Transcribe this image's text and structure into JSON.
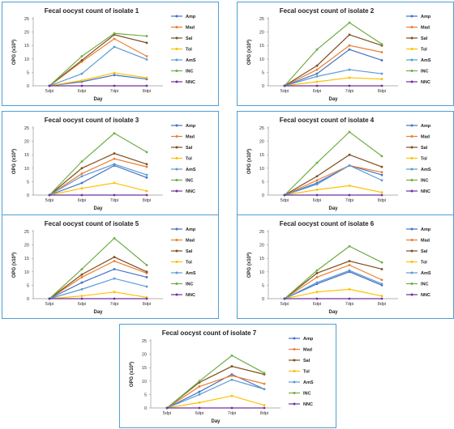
{
  "chart_data": [
    {
      "type": "line",
      "title": "Fecal oocyst count of isolate 1",
      "xlabel": "Day",
      "ylabel_main": "OPG (x10",
      "ylabel_exp": "5",
      "ylabel_end": ")",
      "categories": [
        "5dpi",
        "6dpi",
        "7dpi",
        "8dpi"
      ],
      "ylim": [
        0,
        25
      ],
      "yticks": [
        "0",
        "5",
        "10",
        "15",
        "20",
        "25"
      ],
      "legend_position": "right",
      "series": [
        {
          "name": "Amp",
          "color": "#4472c4",
          "values": [
            0,
            1.5,
            4,
            2.5
          ]
        },
        {
          "name": "Mad",
          "color": "#ed7d31",
          "values": [
            0,
            9,
            17.5,
            11
          ]
        },
        {
          "name": "Sal",
          "color": "#7f4f1f",
          "values": [
            0,
            9.5,
            19,
            16
          ]
        },
        {
          "name": "Tol",
          "color": "#ffc000",
          "values": [
            0,
            2,
            4.8,
            3
          ]
        },
        {
          "name": "AmS",
          "color": "#5b9bd5",
          "values": [
            0,
            4.5,
            14.5,
            9.8
          ]
        },
        {
          "name": "INC",
          "color": "#70ad47",
          "values": [
            0,
            11,
            19.5,
            18.5
          ]
        },
        {
          "name": "NNC",
          "color": "#7030a0",
          "values": [
            0,
            0,
            0,
            0
          ]
        }
      ]
    },
    {
      "type": "line",
      "title": "Fecal oocyst count of isolate 2",
      "xlabel": "Day",
      "ylabel_main": "OPG (x10",
      "ylabel_exp": "5",
      "ylabel_end": ")",
      "categories": [
        "5dpi",
        "6dpi",
        "7dpi",
        "8dpi"
      ],
      "ylim": [
        0,
        25
      ],
      "yticks": [
        "0",
        "5",
        "10",
        "15",
        "20",
        "25"
      ],
      "legend_position": "right",
      "series": [
        {
          "name": "Amp",
          "color": "#4472c4",
          "values": [
            0,
            4.5,
            13.5,
            9.5
          ]
        },
        {
          "name": "Mad",
          "color": "#ed7d31",
          "values": [
            0,
            6,
            15,
            12.5
          ]
        },
        {
          "name": "Sal",
          "color": "#7f4f1f",
          "values": [
            0,
            7.5,
            19,
            15
          ]
        },
        {
          "name": "Tol",
          "color": "#ffc000",
          "values": [
            0,
            1.5,
            3,
            2.5
          ]
        },
        {
          "name": "AmS",
          "color": "#5b9bd5",
          "values": [
            0,
            3.5,
            6,
            4.5
          ]
        },
        {
          "name": "INC",
          "color": "#70ad47",
          "values": [
            0,
            13.5,
            23.5,
            15.5
          ]
        },
        {
          "name": "NNC",
          "color": "#7030a0",
          "values": [
            0,
            0,
            0,
            0
          ]
        }
      ]
    },
    {
      "type": "line",
      "title": "Fecal oocyst count of isolate 3",
      "xlabel": "Day",
      "ylabel_main": "OPG (x10",
      "ylabel_exp": "5",
      "ylabel_end": ")",
      "categories": [
        "5dpi",
        "6dpi",
        "7dpi",
        "8dpi"
      ],
      "ylim": [
        0,
        25
      ],
      "yticks": [
        "0",
        "5",
        "10",
        "15",
        "20",
        "25"
      ],
      "legend_position": "right",
      "series": [
        {
          "name": "Amp",
          "color": "#4472c4",
          "values": [
            0,
            4.5,
            11,
            6.5
          ]
        },
        {
          "name": "Mad",
          "color": "#ed7d31",
          "values": [
            0,
            8,
            13.5,
            10.5
          ]
        },
        {
          "name": "Sal",
          "color": "#7f4f1f",
          "values": [
            0,
            10,
            15.5,
            11.5
          ]
        },
        {
          "name": "Tol",
          "color": "#ffc000",
          "values": [
            0,
            2.5,
            4.5,
            1.5
          ]
        },
        {
          "name": "AmS",
          "color": "#5b9bd5",
          "values": [
            0,
            7,
            11.5,
            7.5
          ]
        },
        {
          "name": "INC",
          "color": "#70ad47",
          "values": [
            0,
            12.5,
            23,
            16
          ]
        },
        {
          "name": "NNC",
          "color": "#7030a0",
          "values": [
            0,
            0,
            0,
            0
          ]
        }
      ]
    },
    {
      "type": "line",
      "title": "Fecal oocyst count of isolate 4",
      "xlabel": "Day",
      "ylabel_main": "OPG (x10",
      "ylabel_exp": "5",
      "ylabel_end": ")",
      "categories": [
        "5dpi",
        "6dpi",
        "7dpi",
        "8dpi"
      ],
      "ylim": [
        0,
        25
      ],
      "yticks": [
        "0",
        "5",
        "10",
        "15",
        "20",
        "25"
      ],
      "legend_position": "right",
      "series": [
        {
          "name": "Amp",
          "color": "#4472c4",
          "values": [
            0,
            4.5,
            11,
            7.5
          ]
        },
        {
          "name": "Mad",
          "color": "#ed7d31",
          "values": [
            0,
            5.5,
            11,
            8.5
          ]
        },
        {
          "name": "Sal",
          "color": "#7f4f1f",
          "values": [
            0,
            7,
            15,
            10.5
          ]
        },
        {
          "name": "Tol",
          "color": "#ffc000",
          "values": [
            0,
            2,
            3.5,
            1
          ]
        },
        {
          "name": "AmS",
          "color": "#5b9bd5",
          "values": [
            0,
            4,
            11,
            5.5
          ]
        },
        {
          "name": "INC",
          "color": "#70ad47",
          "values": [
            0,
            12,
            23.5,
            14.5
          ]
        },
        {
          "name": "NNC",
          "color": "#7030a0",
          "values": [
            0,
            0,
            0,
            0
          ]
        }
      ]
    },
    {
      "type": "line",
      "title": "Fecal oocyst count of isolate 5",
      "xlabel": "Day",
      "ylabel_main": "OPG (x10",
      "ylabel_exp": "5",
      "ylabel_end": ")",
      "categories": [
        "5dpi",
        "6dpi",
        "7dpi",
        "8dpi"
      ],
      "ylim": [
        0,
        25
      ],
      "yticks": [
        "0",
        "5",
        "10",
        "15",
        "20",
        "25"
      ],
      "legend_position": "right",
      "series": [
        {
          "name": "Amp",
          "color": "#4472c4",
          "values": [
            0,
            6,
            11,
            8
          ]
        },
        {
          "name": "Mad",
          "color": "#ed7d31",
          "values": [
            0,
            8,
            14,
            9.5
          ]
        },
        {
          "name": "Sal",
          "color": "#7f4f1f",
          "values": [
            0,
            9,
            15.5,
            10
          ]
        },
        {
          "name": "Tol",
          "color": "#ffc000",
          "values": [
            0,
            1,
            2.5,
            0.5
          ]
        },
        {
          "name": "AmS",
          "color": "#5b9bd5",
          "values": [
            0,
            3.5,
            7.5,
            4.5
          ]
        },
        {
          "name": "INC",
          "color": "#70ad47",
          "values": [
            0,
            11,
            22.5,
            12.5
          ]
        },
        {
          "name": "NNC",
          "color": "#7030a0",
          "values": [
            0,
            0,
            0,
            0
          ]
        }
      ]
    },
    {
      "type": "line",
      "title": "Fecal oocyst count of isolate 6",
      "xlabel": "Day",
      "ylabel_main": "OPG (x10",
      "ylabel_exp": "5",
      "ylabel_end": ")",
      "categories": [
        "5dpi",
        "6dpi",
        "7dpi",
        "8dpi"
      ],
      "ylim": [
        0,
        25
      ],
      "yticks": [
        "0",
        "5",
        "10",
        "15",
        "20",
        "25"
      ],
      "legend_position": "right",
      "series": [
        {
          "name": "Amp",
          "color": "#4472c4",
          "values": [
            0,
            5.5,
            10,
            5
          ]
        },
        {
          "name": "Mad",
          "color": "#ed7d31",
          "values": [
            0,
            8,
            12.5,
            7
          ]
        },
        {
          "name": "Sal",
          "color": "#7f4f1f",
          "values": [
            0,
            9.5,
            14,
            11
          ]
        },
        {
          "name": "Tol",
          "color": "#ffc000",
          "values": [
            0,
            2.5,
            3.5,
            1
          ]
        },
        {
          "name": "AmS",
          "color": "#5b9bd5",
          "values": [
            0,
            6,
            10.5,
            5.5
          ]
        },
        {
          "name": "INC",
          "color": "#70ad47",
          "values": [
            0,
            10.5,
            19.5,
            13.5
          ]
        },
        {
          "name": "NNC",
          "color": "#7030a0",
          "values": [
            0,
            0,
            0,
            0
          ]
        }
      ]
    },
    {
      "type": "line",
      "title": "Fecal oocyst count of isolate 7",
      "xlabel": "Day",
      "ylabel_main": "OPG (x10",
      "ylabel_exp": "5",
      "ylabel_end": ")",
      "categories": [
        "5dpi",
        "6dpi",
        "7dpi",
        "8dpi"
      ],
      "ylim": [
        0,
        25
      ],
      "yticks": [
        "0",
        "5",
        "10",
        "15",
        "20",
        "25"
      ],
      "legend_position": "right",
      "series": [
        {
          "name": "Amp",
          "color": "#4472c4",
          "values": [
            0,
            6,
            12.5,
            7
          ]
        },
        {
          "name": "Mad",
          "color": "#ed7d31",
          "values": [
            0,
            8,
            12,
            9
          ]
        },
        {
          "name": "Sal",
          "color": "#7f4f1f",
          "values": [
            0,
            9.5,
            15.5,
            12.5
          ]
        },
        {
          "name": "Tol",
          "color": "#ffc000",
          "values": [
            0,
            2,
            4.5,
            1
          ]
        },
        {
          "name": "AmS",
          "color": "#5b9bd5",
          "values": [
            0,
            5,
            10.5,
            7
          ]
        },
        {
          "name": "INC",
          "color": "#70ad47",
          "values": [
            0,
            10,
            19.5,
            13
          ]
        },
        {
          "name": "NNC",
          "color": "#7030a0",
          "values": [
            0,
            0,
            0,
            0
          ]
        }
      ]
    }
  ]
}
